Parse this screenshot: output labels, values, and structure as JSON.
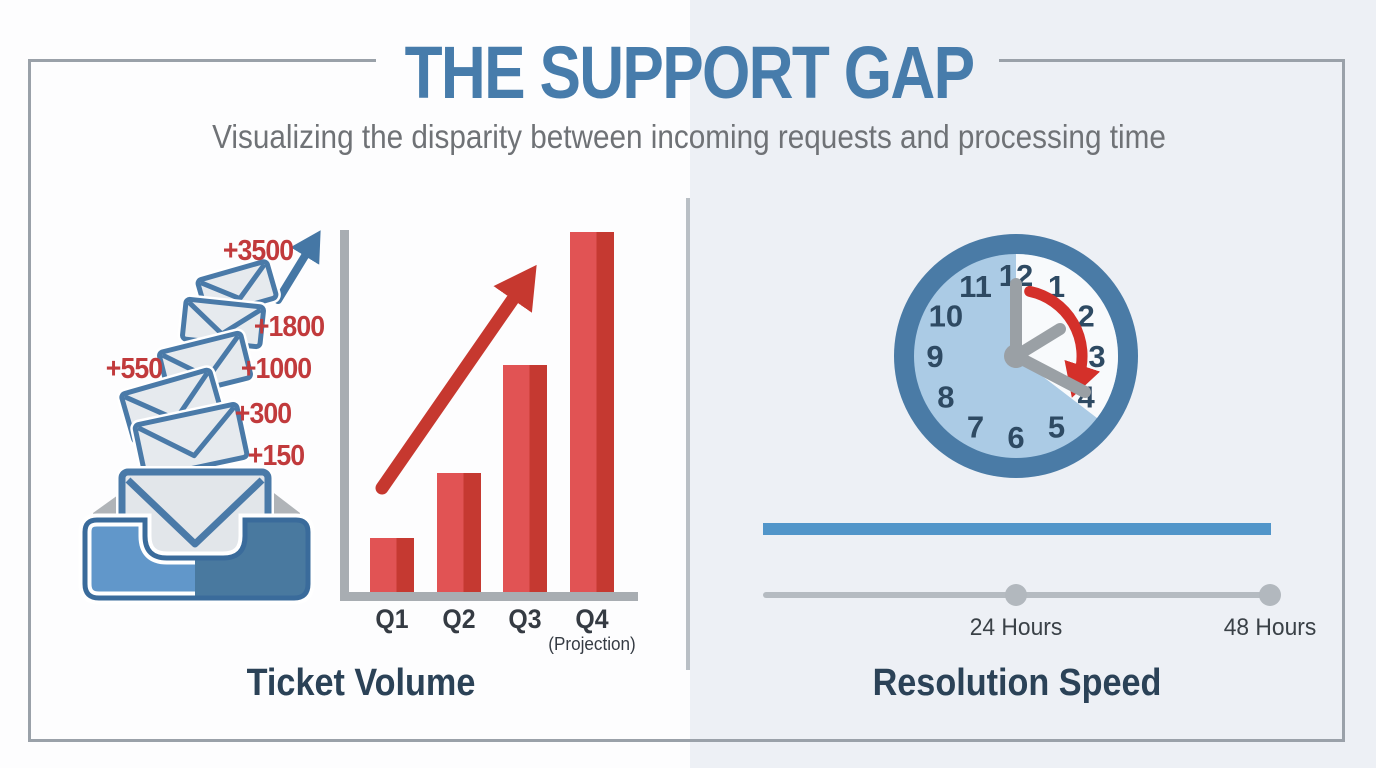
{
  "header": {
    "title": "THE SUPPORT GAP",
    "subtitle": "Visualizing the disparity between incoming requests and processing time"
  },
  "left_panel": {
    "label": "Ticket Volume",
    "annotations": [
      "+150",
      "+300",
      "+550",
      "+1000",
      "+1800",
      "+3500"
    ]
  },
  "right_panel": {
    "label": "Resolution Speed",
    "clock": {
      "numbers": [
        "12",
        "1",
        "2",
        "3",
        "4",
        "5",
        "6",
        "7",
        "8",
        "9",
        "10",
        "11"
      ],
      "ring_color": "#4a7ba6",
      "face_color": "#abcbe5",
      "wedge_color": "#f8fafc",
      "number_color": "#2e4a63",
      "hand_color": "#9aa0a5",
      "arrow_color": "#d4302a"
    },
    "progress_bar_color": "#5195c9",
    "slider": {
      "stops": [
        "24 Hours",
        "48 Hours"
      ],
      "track_color": "#b5bbc1"
    }
  },
  "chart_data": {
    "type": "bar",
    "title": "Ticket Volume",
    "categories": [
      "Q1",
      "Q2",
      "Q3",
      "Q4"
    ],
    "category_note": "(Projection)",
    "category_note_applies_to": "Q4",
    "relative_heights": [
      0.15,
      0.33,
      0.63,
      1.0
    ],
    "value_axis_labeled": false,
    "annotations": [
      "+150",
      "+300",
      "+550",
      "+1000",
      "+1800",
      "+3500"
    ],
    "bar_color_light": "#e15354",
    "bar_color_dark": "#c53931",
    "trend_arrow_color": "#c6382f",
    "axis_color": "#a8adb2",
    "grid": false,
    "legend": false
  },
  "colors": {
    "title": "#477cab",
    "subtitle": "#6f7276",
    "annotation_red": "#c13a3c",
    "section_label": "#2b4257",
    "frame": "#9aa1a9",
    "background_left": "#fdfdfe",
    "background_right": "#edf0f5",
    "divider": "#b9bfc5",
    "envelope_stroke": "#4a7aa8",
    "tray_left": "#6197ca",
    "tray_right": "#49799f"
  }
}
